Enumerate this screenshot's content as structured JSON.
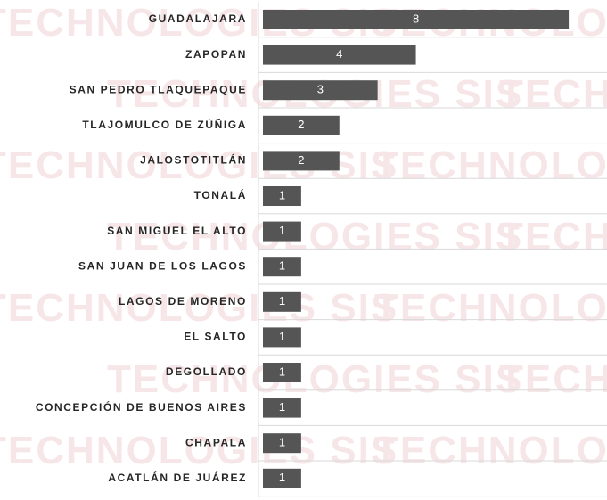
{
  "chart_data": {
    "type": "barh",
    "watermark": "TECHNOLOGIES SIS",
    "categories": [
      "GUADALAJARA",
      "ZAPOPAN",
      "SAN PEDRO TLAQUEPAQUE",
      "TLAJOMULCO DE ZÚÑIGA",
      "JALOSTOTITLÁN",
      "TONALÁ",
      "SAN MIGUEL EL ALTO",
      "SAN JUAN DE LOS LAGOS",
      "LAGOS DE MORENO",
      "EL SALTO",
      "DEGOLLADO",
      "CONCEPCIÓN DE BUENOS AIRES",
      "CHAPALA",
      "ACATLÁN DE JUÁREZ"
    ],
    "values": [
      8,
      4,
      3,
      2,
      2,
      1,
      1,
      1,
      1,
      1,
      1,
      1,
      1,
      1
    ],
    "color": "#555555",
    "xlim": [
      0,
      9
    ],
    "grid": true
  }
}
